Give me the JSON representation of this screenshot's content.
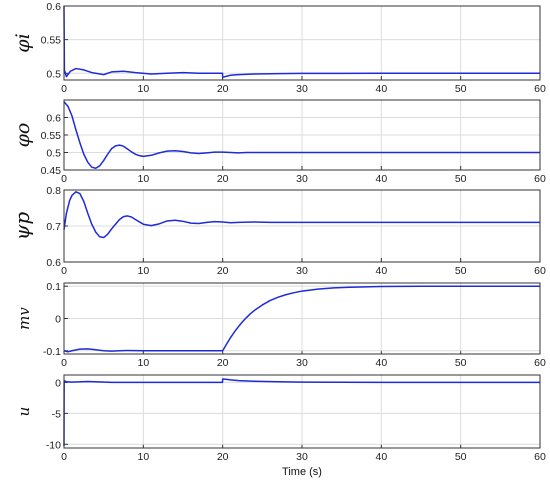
{
  "chart_data": [
    {
      "type": "line",
      "ylabel": "φi",
      "xlim": [
        0,
        60
      ],
      "ylim": [
        0.49,
        0.6
      ],
      "xticks": [
        "0",
        "10",
        "20",
        "30",
        "40",
        "50",
        "60"
      ],
      "yticks": [
        "0.5",
        "0.55",
        "0.6"
      ],
      "grid": true,
      "color": "#1f2bd6",
      "series": [
        {
          "x": [
            0,
            0.05,
            0.3,
            0.8,
            1.5,
            2.5,
            3.5,
            5,
            6,
            7.5,
            9,
            11,
            13,
            15,
            17,
            19,
            19.98,
            20.0,
            20.3,
            21,
            22,
            24,
            27,
            30,
            35,
            40,
            50,
            60
          ],
          "y": [
            0.6,
            0.505,
            0.495,
            0.503,
            0.507,
            0.505,
            0.501,
            0.498,
            0.502,
            0.503,
            0.501,
            0.499,
            0.5,
            0.501,
            0.5,
            0.5,
            0.5,
            0.494,
            0.495,
            0.497,
            0.498,
            0.499,
            0.4995,
            0.4998,
            0.4999,
            0.5,
            0.5,
            0.5
          ]
        }
      ]
    },
    {
      "type": "line",
      "ylabel": "φo",
      "xlim": [
        0,
        60
      ],
      "ylim": [
        0.45,
        0.65
      ],
      "xticks": [
        "0",
        "10",
        "20",
        "30",
        "40",
        "50",
        "60"
      ],
      "yticks": [
        "0.45",
        "0.5",
        "0.55",
        "0.6"
      ],
      "grid": true,
      "color": "#1f2bd6",
      "series": [
        {
          "x": [
            0,
            0.5,
            1,
            1.5,
            2,
            2.5,
            3,
            3.5,
            4,
            4.5,
            5,
            5.5,
            6,
            6.5,
            7,
            7.5,
            8,
            8.5,
            9,
            9.5,
            10,
            11,
            12,
            13,
            14,
            15,
            16,
            17,
            18,
            19,
            20,
            21,
            22,
            23,
            24,
            25,
            27,
            30,
            40,
            50,
            60
          ],
          "y": [
            0.645,
            0.632,
            0.605,
            0.565,
            0.528,
            0.495,
            0.472,
            0.458,
            0.455,
            0.462,
            0.477,
            0.495,
            0.511,
            0.519,
            0.521,
            0.518,
            0.51,
            0.502,
            0.495,
            0.491,
            0.489,
            0.492,
            0.499,
            0.504,
            0.505,
            0.503,
            0.499,
            0.497,
            0.499,
            0.501,
            0.501,
            0.5,
            0.499,
            0.5,
            0.5,
            0.5,
            0.5,
            0.5,
            0.5,
            0.5,
            0.5
          ]
        }
      ]
    },
    {
      "type": "line",
      "ylabel": "ψp",
      "xlim": [
        0,
        60
      ],
      "ylim": [
        0.6,
        0.8
      ],
      "xticks": [
        "0",
        "10",
        "20",
        "30",
        "40",
        "50",
        "60"
      ],
      "yticks": [
        "0.6",
        "0.7",
        "0.8"
      ],
      "grid": true,
      "color": "#1f2bd6",
      "series": [
        {
          "x": [
            0,
            0.3,
            0.7,
            1,
            1.5,
            2,
            2.5,
            3,
            3.5,
            4,
            4.5,
            5,
            5.5,
            6,
            7,
            7.5,
            8,
            8.5,
            9,
            10,
            11,
            12,
            13,
            14,
            15,
            16,
            17,
            18,
            19,
            20,
            21,
            22,
            24,
            26,
            30,
            40,
            50,
            60
          ],
          "y": [
            0.69,
            0.735,
            0.77,
            0.785,
            0.795,
            0.79,
            0.768,
            0.735,
            0.705,
            0.683,
            0.67,
            0.668,
            0.677,
            0.692,
            0.718,
            0.726,
            0.728,
            0.725,
            0.718,
            0.705,
            0.701,
            0.706,
            0.714,
            0.716,
            0.713,
            0.708,
            0.707,
            0.71,
            0.712,
            0.711,
            0.709,
            0.71,
            0.711,
            0.71,
            0.71,
            0.71,
            0.71,
            0.71
          ]
        }
      ]
    },
    {
      "type": "line",
      "ylabel": "mv",
      "xlim": [
        0,
        60
      ],
      "ylim": [
        -0.11,
        0.11
      ],
      "xticks": [
        "0",
        "10",
        "20",
        "30",
        "40",
        "50",
        "60"
      ],
      "yticks": [
        "-0.1",
        "0",
        "0.1"
      ],
      "grid": true,
      "color": "#1f2bd6",
      "series": [
        {
          "x": [
            0,
            0.5,
            1,
            2,
            3,
            4,
            5,
            6,
            7,
            8,
            10,
            12,
            14,
            16,
            18,
            20,
            20.5,
            21,
            21.5,
            22,
            22.5,
            23,
            23.5,
            24,
            25,
            26,
            27,
            28,
            29,
            30,
            32,
            34,
            36,
            40,
            45,
            50,
            60
          ],
          "y": [
            -0.1,
            -0.103,
            -0.1,
            -0.095,
            -0.094,
            -0.097,
            -0.1,
            -0.101,
            -0.1,
            -0.099,
            -0.1,
            -0.1,
            -0.1,
            -0.1,
            -0.1,
            -0.1,
            -0.079,
            -0.059,
            -0.041,
            -0.025,
            -0.01,
            0.003,
            0.015,
            0.025,
            0.042,
            0.056,
            0.066,
            0.074,
            0.08,
            0.085,
            0.091,
            0.095,
            0.097,
            0.099,
            0.1,
            0.1,
            0.1
          ]
        }
      ]
    },
    {
      "type": "line",
      "ylabel": "u",
      "xlabel": "Time (s)",
      "xlim": [
        0,
        60
      ],
      "ylim": [
        -10.6,
        1.2
      ],
      "xticks": [
        "0",
        "10",
        "20",
        "30",
        "40",
        "50",
        "60"
      ],
      "yticks": [
        "-10",
        "-5",
        "0"
      ],
      "grid": true,
      "color": "#1f2bd6",
      "series": [
        {
          "x": [
            0,
            0.02,
            0.1,
            0.3,
            1,
            3,
            6,
            10,
            15,
            19.98,
            20.0,
            20.5,
            21,
            22,
            24,
            27,
            30,
            35,
            40,
            50,
            60
          ],
          "y": [
            -10.3,
            0.2,
            0.25,
            0.1,
            0.05,
            0.15,
            0.0,
            0.0,
            0.0,
            0.0,
            0.55,
            0.5,
            0.42,
            0.3,
            0.2,
            0.1,
            0.05,
            0.02,
            0.0,
            0.0,
            0.0
          ]
        }
      ]
    }
  ]
}
